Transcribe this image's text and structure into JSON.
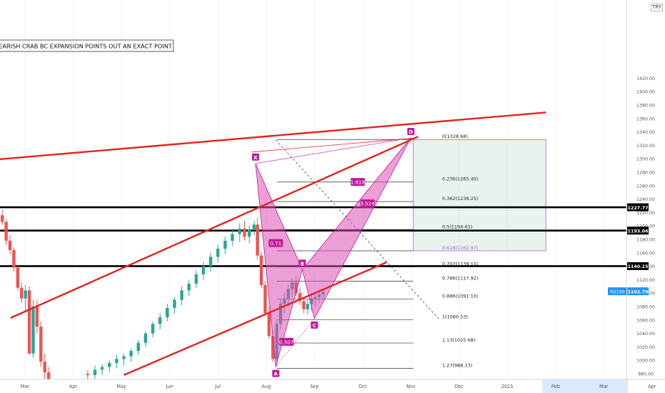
{
  "chart_data": {
    "type": "candlestick",
    "title": "IC TREND TOP AND BEARISH CRAB BC EXPANSION POINTS OUT AN EXACT POINT",
    "symbol": "XU100",
    "last_price": "1102.70",
    "currency": "TRY",
    "ylim": [
      970,
      1430
    ],
    "y_ticks": [
      980,
      1000,
      1020,
      1040,
      1060,
      1080,
      1100,
      1120,
      1140,
      1160,
      1180,
      1200,
      1220,
      1240,
      1260,
      1280,
      1300,
      1320,
      1340,
      1360,
      1380,
      1400,
      1420
    ],
    "y_tick_labels": [
      "980.00",
      "1000.00",
      "1020.00",
      "1040.00",
      "1060.00",
      "1080.00",
      "1100.00",
      "1120.00",
      "1140.00",
      "1160.00",
      "1180.00",
      "1200.00",
      "1220.00",
      "1240.00",
      "1260.00",
      "1280.00",
      "1300.00",
      "1320.00",
      "1340.00",
      "1360.00",
      "1380.00",
      "1400.00",
      "1420.00"
    ],
    "x_labels": [
      "Mar",
      "Apr",
      "May",
      "Jun",
      "Jul",
      "Aug",
      "Sep",
      "Oct",
      "Nov",
      "Dec",
      "2021",
      "Feb",
      "Mar",
      "Apr"
    ],
    "x_label_positions": [
      0,
      1,
      2,
      3,
      4,
      5,
      6,
      7,
      8,
      9,
      10,
      11,
      12,
      13
    ],
    "horizontal_levels": [
      {
        "value": 1227.77,
        "label": "1227.77"
      },
      {
        "value": 1193.06,
        "label": "1193.06"
      },
      {
        "value": 1140.15,
        "label": "1140.15"
      }
    ],
    "fib_levels": [
      {
        "value": 1328.68,
        "label": "0(1328.68)"
      },
      {
        "value": 1265.4,
        "label": "0.236(1265.40)"
      },
      {
        "value": 1236.25,
        "label": "0.382(1236.25)"
      },
      {
        "value": 1194.61,
        "label": "0.5(1194.61)"
      },
      {
        "value": 1162.97,
        "label": "0.618(1162.97)"
      },
      {
        "value": 1139.1,
        "label": "0.707(1139.10)"
      },
      {
        "value": 1117.92,
        "label": "0.786(1117.92)"
      },
      {
        "value": 1091.1,
        "label": "0.886(1091.10)"
      },
      {
        "value": 1060.53,
        "label": "1(1060.53)"
      },
      {
        "value": 1025.68,
        "label": "1.13(1025.68)"
      },
      {
        "value": 988.13,
        "label": "1.27(988.13)"
      }
    ],
    "pattern_points": [
      {
        "label": "X",
        "x": 4.78,
        "y": 1293
      },
      {
        "label": "A",
        "x": 5.2,
        "y": 990
      },
      {
        "label": "B",
        "x": 5.75,
        "y": 1135
      },
      {
        "label": "C",
        "x": 6.0,
        "y": 1062
      },
      {
        "label": "D",
        "x": 8.0,
        "y": 1331
      }
    ],
    "ratio_labels": [
      {
        "text": "0.71",
        "x": 5.2,
        "y": 1174
      },
      {
        "text": "0.507",
        "x": 5.42,
        "y": 1027
      },
      {
        "text": "1.618",
        "x": 6.9,
        "y": 1265
      },
      {
        "text": "3.524",
        "x": 7.1,
        "y": 1233
      }
    ],
    "candles": [
      [
        -0.55,
        1210,
        1222,
        1206,
        1216
      ],
      [
        -0.47,
        1216,
        1224,
        1202,
        1206
      ],
      [
        -0.39,
        1206,
        1210,
        1172,
        1178
      ],
      [
        -0.31,
        1178,
        1186,
        1158,
        1164
      ],
      [
        -0.23,
        1164,
        1168,
        1132,
        1138
      ],
      [
        -0.15,
        1138,
        1142,
        1104,
        1108
      ],
      [
        -0.07,
        1108,
        1116,
        1086,
        1092
      ],
      [
        0.01,
        1092,
        1112,
        1074,
        1104
      ],
      [
        0.09,
        1104,
        1110,
        1008,
        1010
      ],
      [
        0.17,
        1010,
        1090,
        1004,
        1080
      ],
      [
        0.25,
        1080,
        1090,
        1040,
        1050
      ],
      [
        0.33,
        1050,
        1058,
        990,
        998
      ],
      [
        0.41,
        998,
        1010,
        972,
        982
      ],
      [
        0.49,
        982,
        990,
        965,
        970
      ],
      [
        1.3,
        980,
        985,
        968,
        978
      ],
      [
        1.45,
        978,
        992,
        970,
        986
      ],
      [
        1.6,
        986,
        994,
        978,
        990
      ],
      [
        1.75,
        990,
        1000,
        982,
        996
      ],
      [
        1.9,
        996,
        1008,
        988,
        1002
      ],
      [
        2.05,
        1002,
        1010,
        992,
        1006
      ],
      [
        2.2,
        1006,
        1018,
        998,
        1014
      ],
      [
        2.35,
        1014,
        1030,
        1008,
        1026
      ],
      [
        2.5,
        1026,
        1044,
        1020,
        1040
      ],
      [
        2.65,
        1040,
        1058,
        1034,
        1054
      ],
      [
        2.8,
        1054,
        1070,
        1046,
        1064
      ],
      [
        2.95,
        1064,
        1084,
        1058,
        1078
      ],
      [
        3.1,
        1078,
        1094,
        1070,
        1090
      ],
      [
        3.25,
        1090,
        1110,
        1082,
        1104
      ],
      [
        3.4,
        1104,
        1120,
        1096,
        1114
      ],
      [
        3.55,
        1114,
        1134,
        1108,
        1128
      ],
      [
        3.7,
        1128,
        1146,
        1120,
        1140
      ],
      [
        3.85,
        1140,
        1160,
        1132,
        1154
      ],
      [
        4.0,
        1154,
        1172,
        1146,
        1166
      ],
      [
        4.15,
        1166,
        1184,
        1158,
        1178
      ],
      [
        4.3,
        1178,
        1196,
        1170,
        1188
      ],
      [
        4.45,
        1188,
        1204,
        1176,
        1196
      ],
      [
        4.55,
        1196,
        1208,
        1178,
        1184
      ],
      [
        4.65,
        1184,
        1200,
        1174,
        1194
      ],
      [
        4.75,
        1194,
        1208,
        1186,
        1202
      ],
      [
        4.82,
        1202,
        1212,
        1150,
        1156
      ],
      [
        4.9,
        1156,
        1162,
        1108,
        1112
      ],
      [
        4.98,
        1112,
        1118,
        1066,
        1070
      ],
      [
        5.06,
        1070,
        1080,
        1032,
        1036
      ],
      [
        5.14,
        1036,
        1044,
        998,
        1002
      ],
      [
        5.22,
        1002,
        1060,
        995,
        1054
      ],
      [
        5.3,
        1054,
        1090,
        1046,
        1084
      ],
      [
        5.38,
        1084,
        1100,
        1070,
        1092
      ],
      [
        5.46,
        1092,
        1112,
        1080,
        1106
      ],
      [
        5.54,
        1106,
        1122,
        1094,
        1116
      ],
      [
        5.62,
        1116,
        1126,
        1096,
        1100
      ],
      [
        5.7,
        1100,
        1108,
        1082,
        1088
      ],
      [
        5.78,
        1088,
        1094,
        1070,
        1076
      ],
      [
        5.86,
        1076,
        1090,
        1068,
        1084
      ],
      [
        5.94,
        1084,
        1098,
        1074,
        1092
      ],
      [
        6.02,
        1092,
        1100,
        1080,
        1094
      ],
      [
        6.1,
        1094,
        1104,
        1086,
        1098
      ],
      [
        6.18,
        1098,
        1106,
        1090,
        1102
      ]
    ]
  }
}
